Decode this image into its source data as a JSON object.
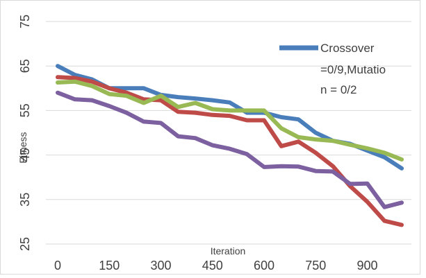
{
  "chart_data": {
    "type": "line",
    "title": "",
    "xlabel": "Iteration",
    "ylabel": "Fitness",
    "xlim": [
      0,
      1000
    ],
    "ylim": [
      25,
      75
    ],
    "x_ticks": [
      "0",
      "150",
      "300",
      "450",
      "600",
      "750",
      "900"
    ],
    "y_ticks": [
      "25",
      "35",
      "45",
      "55",
      "65",
      "75"
    ],
    "grid": "horizontal",
    "legend_position": "top-right",
    "legend_lines": [
      "Crossover",
      "=0/9,Mutatio",
      "n = 0/2"
    ],
    "x": [
      0,
      50,
      100,
      150,
      200,
      250,
      300,
      350,
      400,
      450,
      500,
      550,
      600,
      650,
      700,
      750,
      800,
      850,
      900,
      950,
      1000
    ],
    "series": [
      {
        "name": "Crossover =0/9,Mutation = 0/2",
        "color": "#4a7ebb",
        "values": [
          65,
          63,
          62,
          60,
          60,
          60,
          58.5,
          58,
          57.7,
          57.3,
          56.8,
          54.5,
          54.5,
          53.5,
          53,
          50,
          48.2,
          47.5,
          46,
          44.5,
          42
        ]
      },
      {
        "name": "",
        "color": "#be4b48",
        "values": [
          62.5,
          62.3,
          61.5,
          60,
          59,
          57.5,
          57.3,
          54.7,
          54.5,
          54,
          53.8,
          52.8,
          52.8,
          47,
          48,
          45.5,
          42.5,
          38,
          34.5,
          30.2,
          29.3
        ]
      },
      {
        "name": "",
        "color": "#98b954",
        "values": [
          61.3,
          61.5,
          60.5,
          58.7,
          58.3,
          56.7,
          58.3,
          55.8,
          56.7,
          55.3,
          55,
          55,
          55,
          51,
          49,
          48.5,
          48.2,
          47.3,
          46.5,
          45.5,
          44
        ]
      },
      {
        "name": "",
        "color": "#7d60a0",
        "values": [
          59,
          57.5,
          57.3,
          56,
          54.5,
          52.5,
          52.2,
          49.2,
          48.8,
          47.2,
          46.4,
          45.2,
          42.3,
          42.5,
          42.4,
          41.4,
          41.3,
          38.5,
          38.6,
          33.3,
          34.3
        ]
      }
    ]
  }
}
